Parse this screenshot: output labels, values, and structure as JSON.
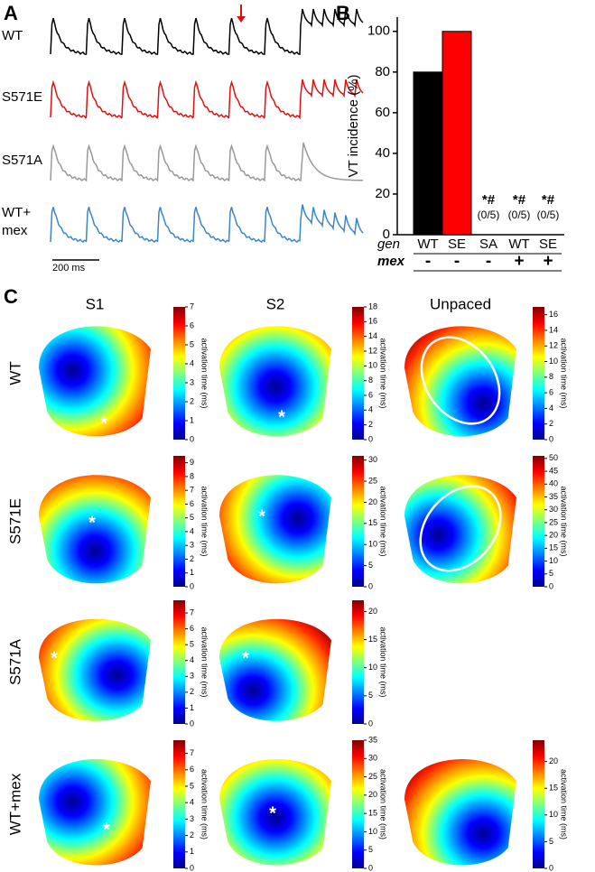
{
  "panel_labels": [
    "A",
    "B",
    "C"
  ],
  "traces": {
    "rows": [
      "WT",
      "S571E",
      "S571A",
      "WT+",
      "mex"
    ],
    "scale_bar": "200 ms"
  },
  "chart_data": {
    "type": "bar",
    "y_label": "VT incidence (%)",
    "categories": [
      "WT",
      "SE",
      "SA",
      "WT",
      "SE"
    ],
    "values": [
      80,
      100,
      0,
      0,
      0
    ],
    "colors": [
      "#000000",
      "#ff0000",
      "#000000",
      "#000000",
      "#000000"
    ],
    "annotations": [
      null,
      null,
      "*#",
      "*#",
      "*#"
    ],
    "counts": [
      null,
      null,
      "(0/5)",
      "(0/5)",
      "(0/5)"
    ],
    "row_labels": [
      "gen",
      "mex"
    ],
    "mex": [
      "-",
      "-",
      "-",
      "+",
      "+"
    ],
    "ylim": [
      0,
      107
    ],
    "yticks": [
      0,
      20,
      40,
      60,
      80,
      100
    ]
  },
  "maps": {
    "columns": [
      "S1",
      "S2",
      "Unpaced"
    ],
    "rows": [
      "WT",
      "S571E",
      "S571A",
      "WT+mex"
    ],
    "colorbar_label": "activation time (ms)",
    "marker": "*",
    "colorbars": [
      [
        {
          "clim": [
            0,
            7
          ],
          "ticks": [
            0,
            1,
            2,
            3,
            4,
            5,
            6,
            7
          ]
        },
        {
          "clim": [
            0,
            18
          ],
          "ticks": [
            0,
            2,
            4,
            6,
            8,
            10,
            12,
            14,
            16,
            18
          ]
        },
        {
          "clim": [
            0,
            17
          ],
          "ticks": [
            0,
            2,
            4,
            6,
            8,
            10,
            12,
            14,
            16
          ]
        }
      ],
      [
        {
          "clim": [
            0,
            9.5
          ],
          "ticks": [
            0,
            1,
            2,
            3,
            4,
            5,
            6,
            7,
            8,
            9
          ]
        },
        {
          "clim": [
            0,
            31
          ],
          "ticks": [
            0,
            5,
            10,
            15,
            20,
            25,
            30
          ]
        },
        {
          "clim": [
            0,
            51
          ],
          "ticks": [
            0,
            5,
            10,
            15,
            20,
            25,
            30,
            35,
            40,
            45,
            50
          ]
        }
      ],
      [
        {
          "clim": [
            0,
            7.8
          ],
          "ticks": [
            0,
            1,
            2,
            3,
            4,
            5,
            6,
            7
          ]
        },
        {
          "clim": [
            0,
            22
          ],
          "ticks": [
            0,
            5,
            10,
            15,
            20
          ]
        },
        null
      ],
      [
        {
          "clim": [
            0,
            7.8
          ],
          "ticks": [
            0,
            1,
            2,
            3,
            4,
            5,
            6,
            7
          ]
        },
        {
          "clim": [
            0,
            35
          ],
          "ticks": [
            0,
            5,
            10,
            15,
            20,
            25,
            30,
            35
          ]
        },
        {
          "clim": [
            0,
            24
          ],
          "ticks": [
            0,
            5,
            10,
            15,
            20
          ]
        }
      ]
    ]
  }
}
